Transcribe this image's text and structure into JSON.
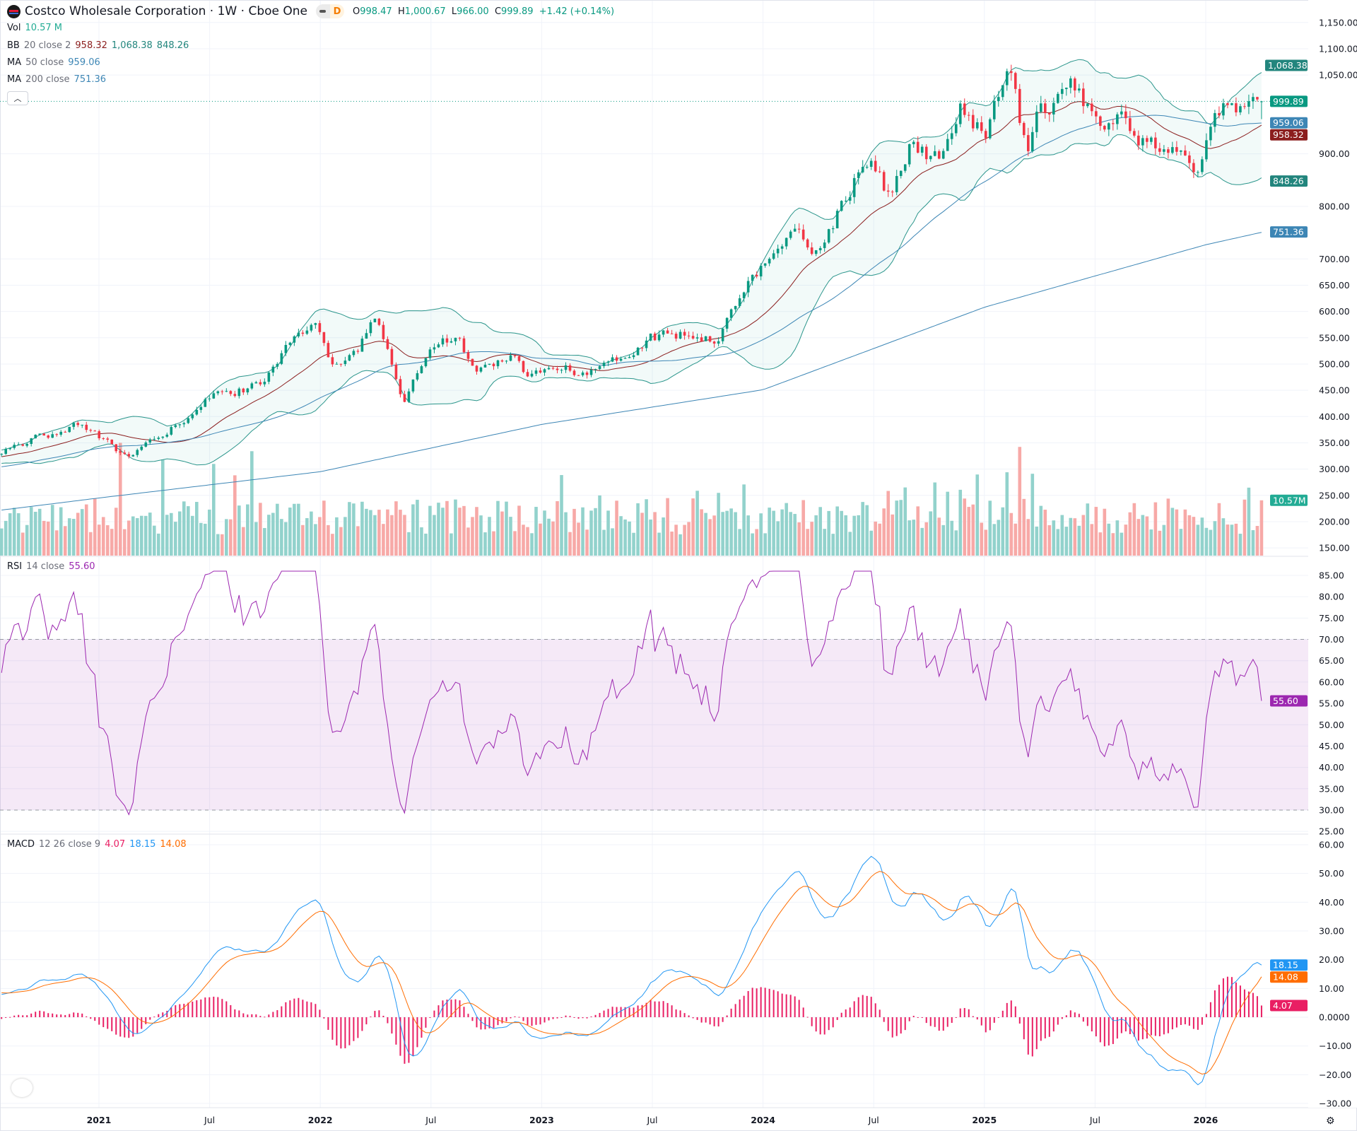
{
  "header": {
    "title": "Costco Wholesale Corporation · 1W · Cboe One",
    "badge_d": "D",
    "o_label": "O",
    "o": "998.47",
    "h_label": "H",
    "h": "1,000.67",
    "l_label": "L",
    "l": "966.00",
    "c_label": "C",
    "c": "999.89",
    "change": "+1.42 (+0.14%)"
  },
  "legends": {
    "vol": {
      "name": "Vol",
      "value": "10.57 M"
    },
    "bb": {
      "name": "BB",
      "params": "20 close 2",
      "basis": "958.32",
      "upper": "1,068.38",
      "lower": "848.26"
    },
    "ma50": {
      "name": "MA",
      "params": "50 close",
      "value": "959.06"
    },
    "ma200": {
      "name": "MA",
      "params": "200 close",
      "value": "751.36"
    },
    "rsi": {
      "name": "RSI",
      "params": "14 close",
      "value": "55.60"
    },
    "macd": {
      "name": "MACD",
      "params": "12 26 close 9",
      "hist": "4.07",
      "macd": "18.15",
      "signal": "14.08"
    }
  },
  "collapse_icon": "chevron-up-icon",
  "logo_text": "17",
  "colors": {
    "up": "#089981",
    "down": "#f23645",
    "vol_up": "#92d2cc",
    "vol_down": "#f7a9a7",
    "bb_band": "#2a958b",
    "bb_basis": "#8b1e1e",
    "bb_fill": "rgba(8,153,129,0.05)",
    "ma": "#3d86b5",
    "rsi": "#9c27b0",
    "rsi_fill": "rgba(156,39,176,0.1)",
    "macd": "#2196f3",
    "signal": "#ff6d00",
    "hist": "#e91e63"
  },
  "axis": {
    "price_ticks": [
      "1,150.00",
      "1,100.00",
      "1,050.00",
      "900.00",
      "800.00",
      "700.00",
      "650.00",
      "600.00",
      "550.00",
      "500.00",
      "450.00",
      "400.00",
      "350.00",
      "300.00",
      "250.00",
      "200.00",
      "150.00"
    ],
    "price_tick_values": [
      1150,
      1100,
      1050,
      900,
      800,
      700,
      650,
      600,
      550,
      500,
      450,
      400,
      350,
      300,
      250,
      200,
      150
    ],
    "rsi_ticks": [
      "85.00",
      "80.00",
      "75.00",
      "70.00",
      "65.00",
      "60.00",
      "55.00",
      "50.00",
      "45.00",
      "40.00",
      "35.00",
      "30.00",
      "25.00"
    ],
    "rsi_tick_values": [
      85,
      80,
      75,
      70,
      65,
      60,
      55,
      50,
      45,
      40,
      35,
      30,
      25
    ],
    "macd_ticks": [
      "60.00",
      "50.00",
      "40.00",
      "30.00",
      "20.00",
      "10.00",
      "0.0000",
      "−10.00",
      "−20.00",
      "−30.00"
    ],
    "macd_tick_values": [
      60,
      50,
      40,
      30,
      20,
      10,
      0,
      -10,
      -20,
      -30
    ],
    "time_labels": [
      {
        "label": "2021",
        "t": 2021.0,
        "bold": true
      },
      {
        "label": "Jul",
        "t": 2021.5,
        "bold": false
      },
      {
        "label": "2022",
        "t": 2022.0,
        "bold": true
      },
      {
        "label": "Jul",
        "t": 2022.5,
        "bold": false
      },
      {
        "label": "2023",
        "t": 2023.0,
        "bold": true
      },
      {
        "label": "Jul",
        "t": 2023.5,
        "bold": false
      },
      {
        "label": "2024",
        "t": 2024.0,
        "bold": true
      },
      {
        "label": "Jul",
        "t": 2024.5,
        "bold": false
      },
      {
        "label": "2025",
        "t": 2025.0,
        "bold": true
      },
      {
        "label": "Jul",
        "t": 2025.5,
        "bold": false
      },
      {
        "label": "2026",
        "t": 2026.0,
        "bold": true
      }
    ]
  },
  "price_badges": [
    {
      "label": "1,068.38",
      "value": 1068.38,
      "color": "#22857d"
    },
    {
      "label": "999.89",
      "value": 999.89,
      "color": "#089981"
    },
    {
      "label": "959.06",
      "value": 959.06,
      "color": "#3d86b5"
    },
    {
      "label": "958.32",
      "value": 958.32,
      "color": "#8b1e1e"
    },
    {
      "label": "848.26",
      "value": 848.26,
      "color": "#22857d"
    },
    {
      "label": "751.36",
      "value": 751.36,
      "color": "#3d86b5"
    }
  ],
  "vol_badge": {
    "label": "10.57M",
    "value": 10.57,
    "color": "#22ab94"
  },
  "rsi_badge": {
    "label": "55.60",
    "value": 55.6,
    "color": "#9c27b0"
  },
  "macd_badges": [
    {
      "label": "18.15",
      "value": 18.15,
      "color": "#2196f3"
    },
    {
      "label": "14.08",
      "value": 14.08,
      "color": "#ff6d00"
    },
    {
      "label": "4.07",
      "value": 4.07,
      "color": "#e91e63"
    }
  ],
  "chart_data": {
    "type": "candlestick",
    "title": "Costco Wholesale Corporation · 1W · Cboe One",
    "interval": "1W",
    "ylim": [
      135,
      1175
    ],
    "x_range": [
      2020.56,
      2026.26
    ],
    "close_anchors": [
      [
        2020.56,
        336
      ],
      [
        2020.91,
        385
      ],
      [
        2021.14,
        320
      ],
      [
        2021.34,
        380
      ],
      [
        2021.49,
        435
      ],
      [
        2021.73,
        460
      ],
      [
        2021.88,
        560
      ],
      [
        2021.98,
        567
      ],
      [
        2022.06,
        485
      ],
      [
        2022.16,
        517
      ],
      [
        2022.25,
        590
      ],
      [
        2022.31,
        534
      ],
      [
        2022.37,
        427
      ],
      [
        2022.51,
        534
      ],
      [
        2022.63,
        550
      ],
      [
        2022.7,
        476
      ],
      [
        2022.88,
        525
      ],
      [
        2022.94,
        468
      ],
      [
        2023.1,
        500
      ],
      [
        2023.17,
        484
      ],
      [
        2023.29,
        500
      ],
      [
        2023.49,
        550
      ],
      [
        2023.68,
        558
      ],
      [
        2023.8,
        550
      ],
      [
        2023.92,
        650
      ],
      [
        2023.99,
        682
      ],
      [
        2024.15,
        748
      ],
      [
        2024.23,
        715
      ],
      [
        2024.31,
        765
      ],
      [
        2024.42,
        855
      ],
      [
        2024.5,
        880
      ],
      [
        2024.58,
        805
      ],
      [
        2024.66,
        913
      ],
      [
        2024.8,
        888
      ],
      [
        2024.89,
        987
      ],
      [
        2025.01,
        930
      ],
      [
        2025.11,
        1061
      ],
      [
        2025.19,
        904
      ],
      [
        2025.25,
        979
      ],
      [
        2025.4,
        1028
      ],
      [
        2025.52,
        962
      ],
      [
        2025.62,
        979
      ],
      [
        2025.73,
        921
      ],
      [
        2025.85,
        904
      ],
      [
        2025.97,
        855
      ],
      [
        2026.03,
        946
      ],
      [
        2026.11,
        1011
      ],
      [
        2026.18,
        979
      ],
      [
        2026.26,
        999.89
      ]
    ],
    "ma200_anchors": [
      [
        2020.56,
        222
      ],
      [
        2021.0,
        245
      ],
      [
        2022.0,
        295
      ],
      [
        2023.0,
        385
      ],
      [
        2024.0,
        451
      ],
      [
        2025.0,
        608
      ],
      [
        2026.0,
        727
      ],
      [
        2026.26,
        751.36
      ]
    ],
    "last_candle": {
      "open": 998.47,
      "high": 1000.67,
      "low": 966.0,
      "close": 999.89,
      "volume_m": 10.57
    },
    "volume_range_m": [
      2,
      26
    ],
    "rsi": {
      "period": 14,
      "last": 55.6,
      "upper": 70,
      "lower": 30,
      "ylim": [
        25,
        87
      ]
    },
    "macd": {
      "fast": 12,
      "slow": 26,
      "signal": 9,
      "last_macd": 18.15,
      "last_signal": 14.08,
      "last_hist": 4.07,
      "ylim": [
        -33,
        63
      ]
    }
  }
}
